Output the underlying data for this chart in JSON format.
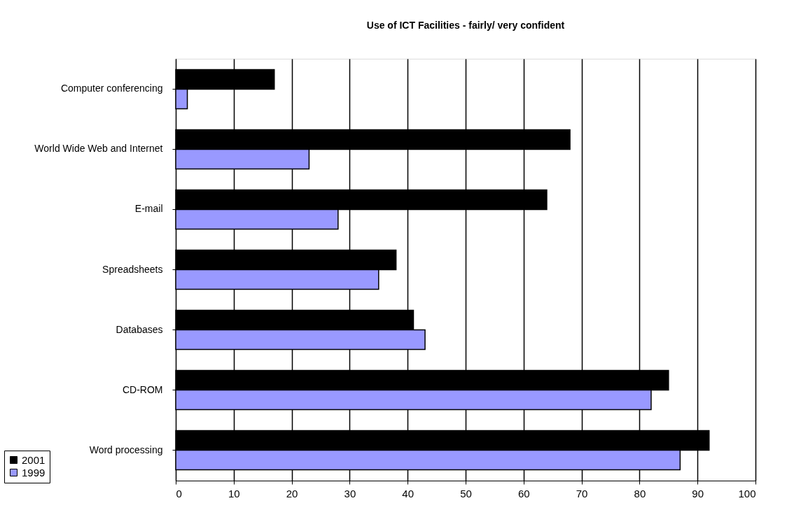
{
  "chart_data": {
    "type": "bar",
    "orientation": "horizontal",
    "title": "Use of ICT Facilities - fairly/ very confident",
    "categories": [
      "Computer conferencing",
      "World Wide Web and Internet",
      "E-mail",
      "Spreadsheets",
      "Databases",
      "CD-ROM",
      "Word processing"
    ],
    "series": [
      {
        "name": "2001",
        "color": "#000000",
        "values": [
          17,
          68,
          64,
          38,
          41,
          85,
          92
        ]
      },
      {
        "name": "1999",
        "color": "#9999ff",
        "values": [
          2,
          23,
          28,
          35,
          43,
          82,
          87
        ]
      }
    ],
    "xlim": [
      0,
      100
    ],
    "xticks": [
      0,
      10,
      20,
      30,
      40,
      50,
      60,
      70,
      80,
      90,
      100
    ],
    "grid": "x",
    "legend": "bottom left"
  }
}
